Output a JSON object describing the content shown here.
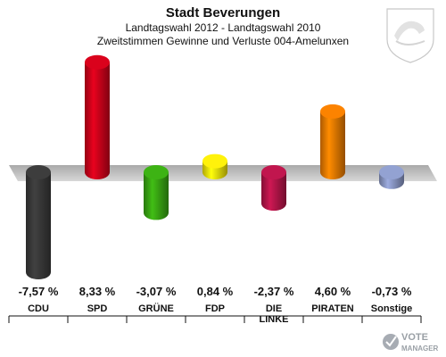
{
  "title": "Stadt Beverungen",
  "subtitle1": "Landtagswahl 2012 - Landtagswahl 2010",
  "subtitle2": "Zweitstimmen Gewinne und Verluste 004-Amelunxen",
  "logo": {
    "line1": "VOTE",
    "line2": "MANAGER"
  },
  "chart_data": {
    "type": "bar",
    "title": "Stadt Beverungen",
    "subtitle": "Landtagswahl 2012 - Landtagswahl 2010 / Zweitstimmen Gewinne und Verluste 004-Amelunxen",
    "categories": [
      "CDU",
      "SPD",
      "GRÜNE",
      "FDP",
      "DIE LINKE",
      "PIRATEN",
      "Sonstige"
    ],
    "values": [
      -7.57,
      8.33,
      -3.07,
      0.84,
      -2.37,
      4.6,
      -0.73
    ],
    "value_labels": [
      "-7,57 %",
      "8,33 %",
      "-3,07 %",
      "0,84 %",
      "-2,37 %",
      "4,60 %",
      "-0,73 %"
    ],
    "unit": "%",
    "colors": [
      "#3a3a3a",
      "#d0021b",
      "#3aaa13",
      "#f5e60a",
      "#b8154a",
      "#f07d00",
      "#8c9ac8"
    ],
    "baseline": 0,
    "grid": false,
    "legend": "none"
  }
}
